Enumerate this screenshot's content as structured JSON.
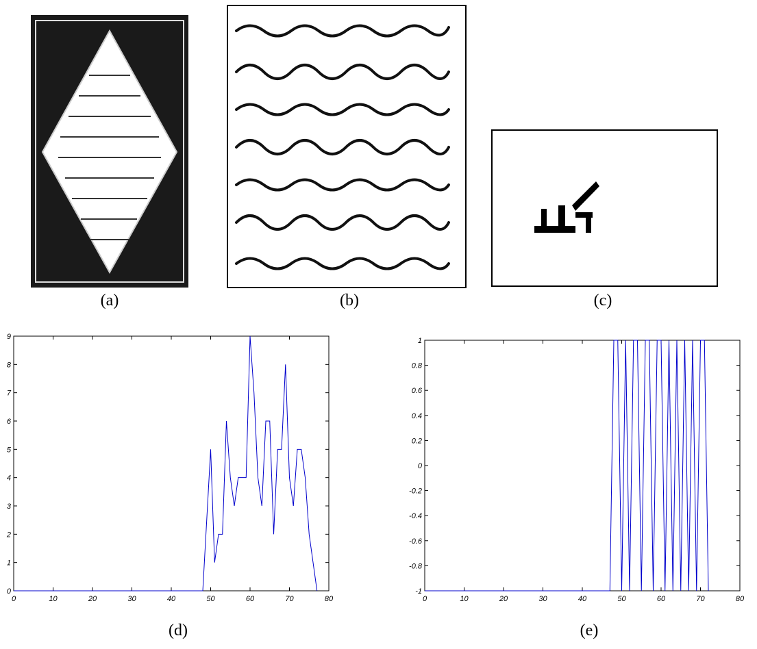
{
  "panels": [
    {
      "caption": "(a)"
    },
    {
      "caption": "(b)"
    },
    {
      "caption": "(c)"
    }
  ],
  "chart_data": [
    {
      "type": "line",
      "caption": "(d)",
      "color": "#0000cc",
      "x": [
        0,
        48,
        49,
        50,
        51,
        52,
        53,
        54,
        55,
        56,
        57,
        58,
        59,
        60,
        61,
        62,
        63,
        64,
        65,
        66,
        67,
        68,
        69,
        70,
        71,
        72,
        73,
        74,
        75,
        76,
        77
      ],
      "values": [
        0,
        0,
        2.5,
        5,
        1,
        2,
        2,
        6,
        4,
        3,
        4,
        4,
        4,
        9,
        7,
        4,
        3,
        6,
        6,
        2,
        5,
        5,
        8,
        4,
        3,
        5,
        5,
        4,
        2,
        1,
        0
      ],
      "xlim": [
        0,
        80
      ],
      "ylim": [
        0,
        9
      ],
      "xticks": [
        0,
        10,
        20,
        30,
        40,
        50,
        60,
        70,
        80
      ],
      "yticks": [
        0,
        1,
        2,
        3,
        4,
        5,
        6,
        7,
        8,
        9
      ]
    },
    {
      "type": "line",
      "caption": "(e)",
      "color": "#0000cc",
      "x": [
        0,
        47,
        48,
        49,
        50,
        51,
        52,
        53,
        54,
        55,
        56,
        57,
        58,
        59,
        60,
        61,
        62,
        63,
        64,
        65,
        66,
        67,
        68,
        69,
        70,
        71,
        72
      ],
      "values": [
        -1,
        -1,
        1,
        1,
        -1,
        1,
        -1,
        1,
        1,
        -1,
        1,
        1,
        -1,
        1,
        1,
        -1,
        1,
        -1,
        1,
        -1,
        1,
        -1,
        1,
        -1,
        1,
        1,
        -1
      ],
      "xlim": [
        0,
        80
      ],
      "ylim": [
        -1,
        1
      ],
      "xticks": [
        0,
        10,
        20,
        30,
        40,
        50,
        60,
        70,
        80
      ],
      "yticks": [
        -1,
        -0.8,
        -0.6,
        -0.4,
        -0.2,
        0,
        0.2,
        0.4,
        0.6,
        0.8,
        1
      ]
    }
  ]
}
